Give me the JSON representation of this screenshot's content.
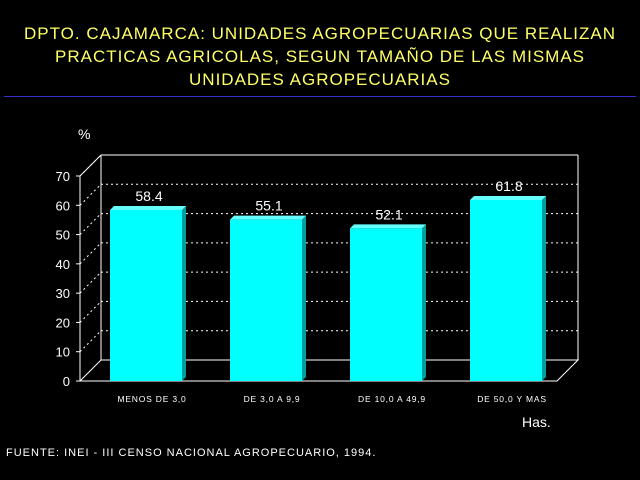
{
  "title_lines": [
    "DPTO. CAJAMARCA: UNIDADES AGROPECUARIAS QUE REALIZAN",
    "PRACTICAS AGRICOLAS, SEGUN TAMAÑO DE LAS MISMAS",
    "UNIDADES AGROPECUARIAS"
  ],
  "source": "FUENTE: INEI - III CENSO NACIONAL AGROPECUARIO, 1994.",
  "colors": {
    "title": "#ffff66",
    "bar_front": "#00ffff",
    "bar_side": "#00a0a0",
    "rule": "#3333cc"
  },
  "chart_data": {
    "type": "bar",
    "categories": [
      "MENOS DE 3,0",
      "DE 3,0 A 9,9",
      "DE 10,0 A 49,9",
      "DE 50,0 Y MAS"
    ],
    "values": [
      58.4,
      55.1,
      52.1,
      61.8
    ],
    "value_labels": [
      "58.4",
      "55.1",
      "52.1",
      "61.8"
    ],
    "ylabel": "%",
    "xlabel": "Has.",
    "ylim": [
      0,
      70
    ],
    "yticks": [
      0,
      10,
      20,
      30,
      40,
      50,
      60,
      70
    ],
    "grid": true
  }
}
